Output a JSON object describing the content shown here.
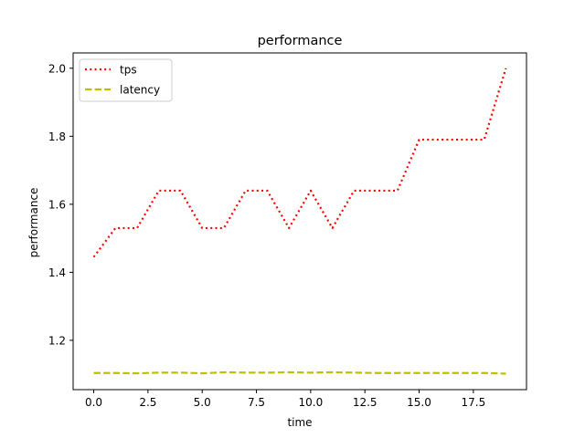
{
  "chart_data": {
    "type": "line",
    "title": "performance",
    "xlabel": "time",
    "ylabel": "performance",
    "xlim": [
      -0.95,
      19.95
    ],
    "ylim": [
      1.055,
      2.045
    ],
    "xticks": [
      0.0,
      2.5,
      5.0,
      7.5,
      10.0,
      12.5,
      15.0,
      17.5
    ],
    "xtick_labels": [
      "0.0",
      "2.5",
      "5.0",
      "7.5",
      "10.0",
      "12.5",
      "15.0",
      "17.5"
    ],
    "yticks": [
      1.2,
      1.4,
      1.6,
      1.8,
      2.0
    ],
    "ytick_labels": [
      "1.2",
      "1.4",
      "1.6",
      "1.8",
      "2.0"
    ],
    "grid": false,
    "legend_position": "upper-left",
    "x": [
      0,
      1,
      2,
      3,
      4,
      5,
      6,
      7,
      8,
      9,
      10,
      11,
      12,
      13,
      14,
      15,
      16,
      17,
      18,
      19
    ],
    "series": [
      {
        "name": "tps",
        "color": "#ff0000",
        "style": "dotted",
        "values": [
          1.445,
          1.53,
          1.53,
          1.64,
          1.64,
          1.53,
          1.53,
          1.64,
          1.64,
          1.53,
          1.64,
          1.53,
          1.64,
          1.64,
          1.64,
          1.79,
          1.79,
          1.79,
          1.79,
          2.0
        ]
      },
      {
        "name": "latency",
        "color": "#bfbf00",
        "style": "dashed",
        "values": [
          1.104,
          1.104,
          1.103,
          1.105,
          1.105,
          1.103,
          1.106,
          1.105,
          1.105,
          1.106,
          1.105,
          1.106,
          1.105,
          1.104,
          1.104,
          1.104,
          1.104,
          1.104,
          1.104,
          1.102
        ]
      }
    ]
  }
}
